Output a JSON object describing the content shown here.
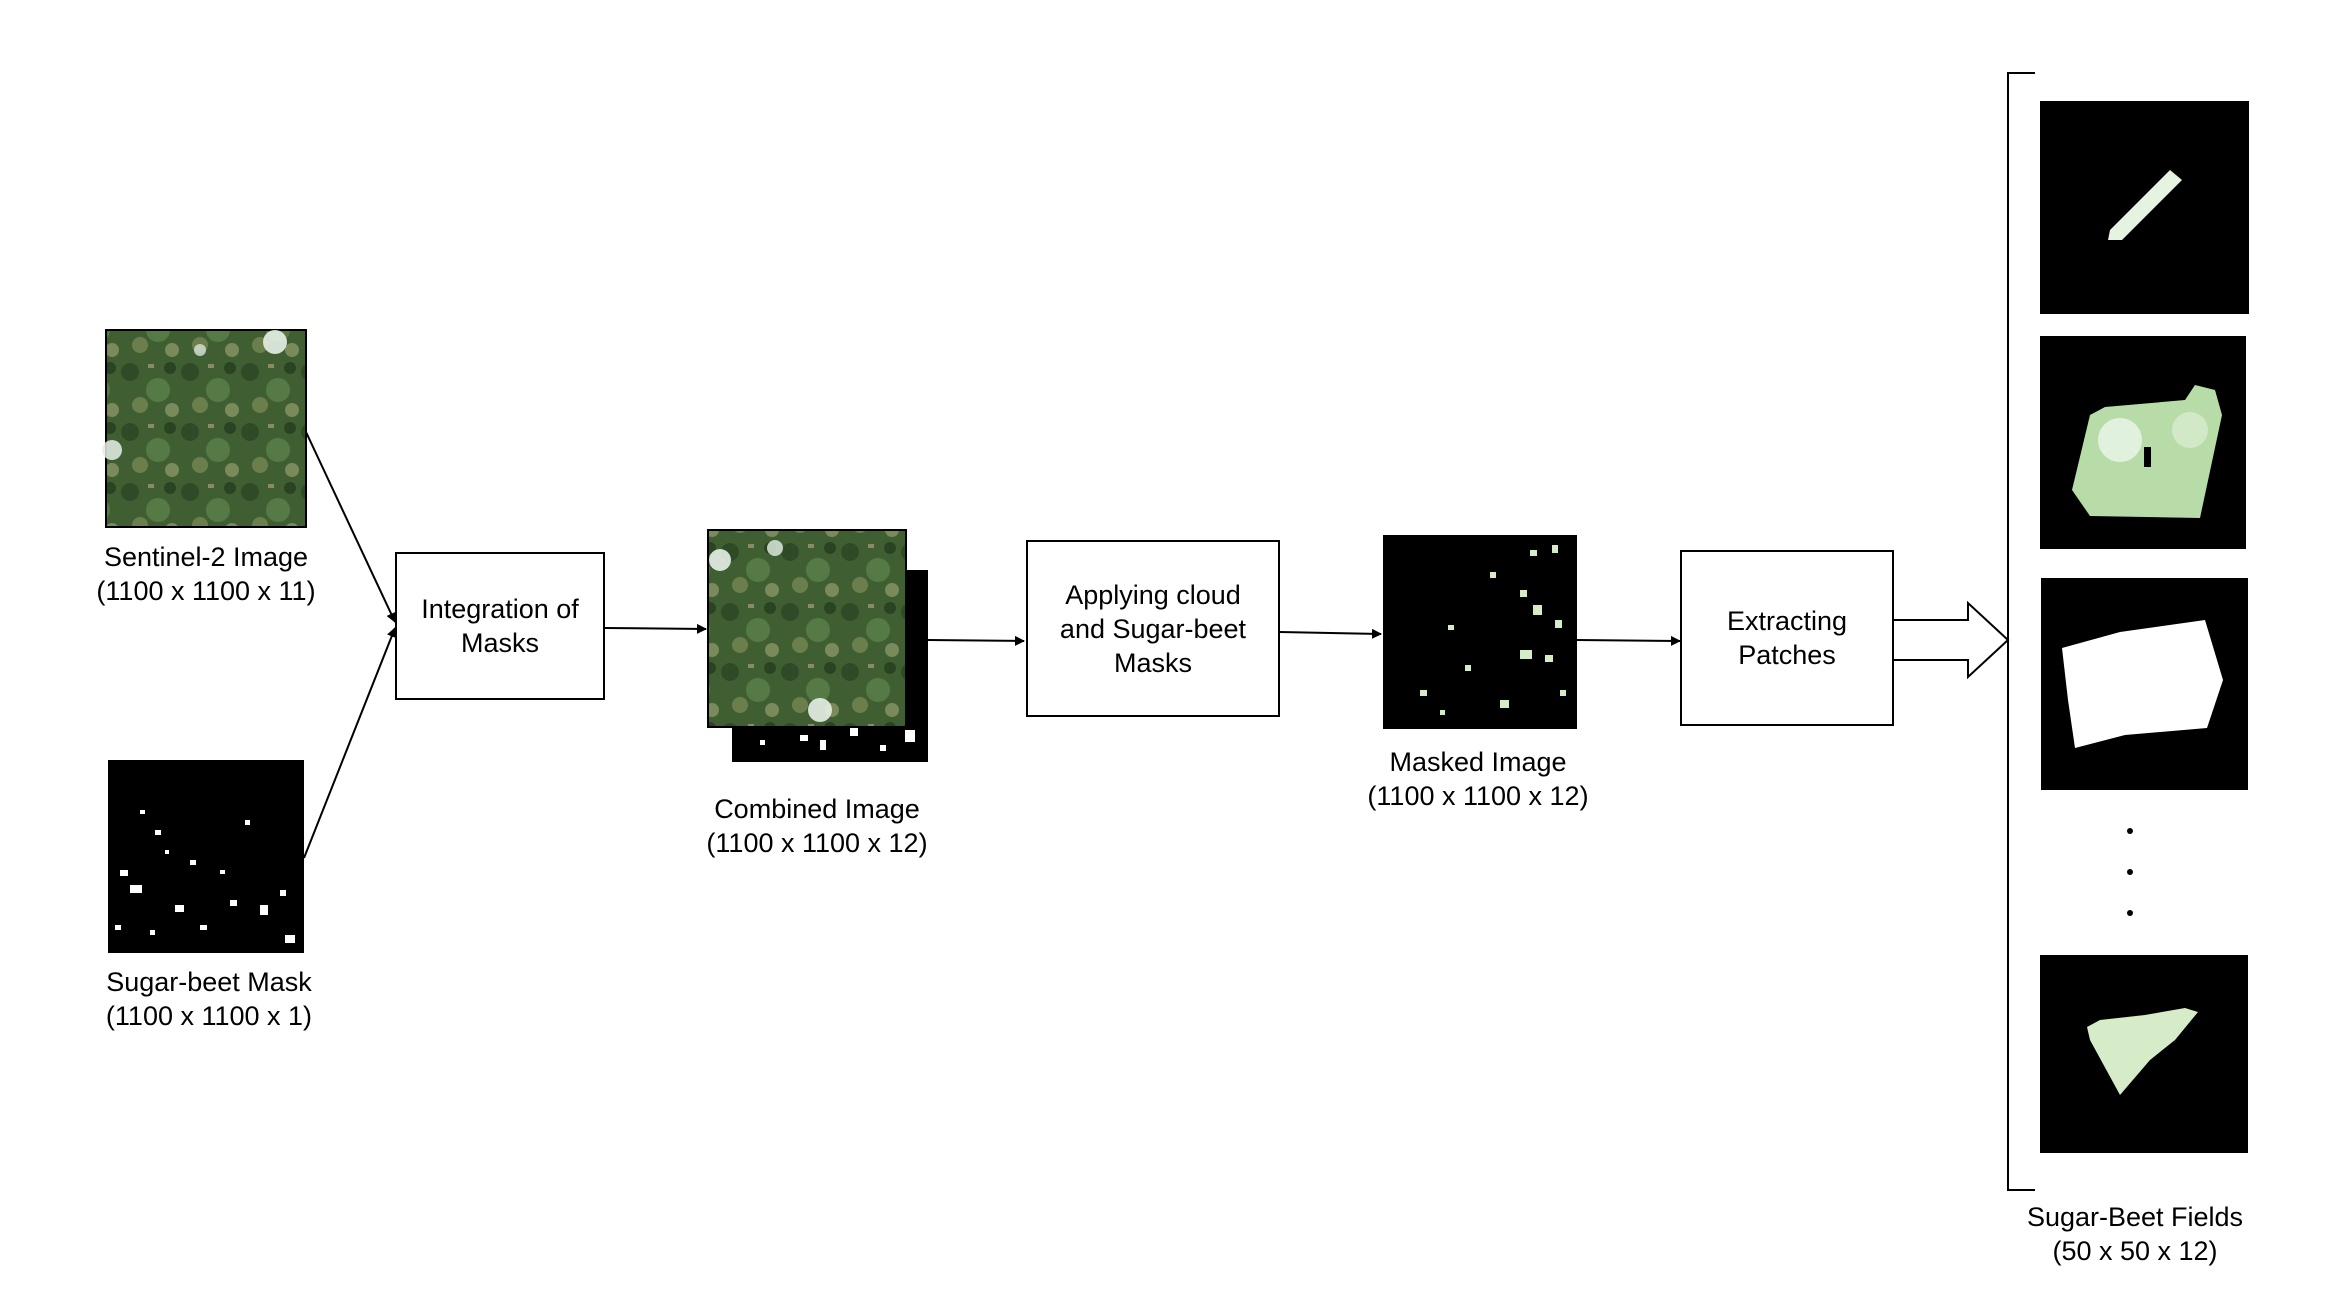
{
  "inputs": {
    "sentinel": {
      "title": "Sentinel-2 Image",
      "dims": "(1100 x 1100 x 11)"
    },
    "mask": {
      "title": "Sugar-beet Mask",
      "dims": "(1100 x 1100 x 1)"
    }
  },
  "steps": {
    "integration": {
      "line1": "Integration of",
      "line2": "Masks"
    },
    "combined": {
      "title": "Combined Image",
      "dims": "(1100 x 1100 x 12)"
    },
    "applying": {
      "line1": "Applying cloud",
      "line2": "and Sugar-beet",
      "line3": "Masks"
    },
    "masked": {
      "title": "Masked Image",
      "dims": "(1100 x 1100 x 12)"
    },
    "extracting": {
      "line1": "Extracting",
      "line2": "Patches"
    }
  },
  "output": {
    "title": "Sugar-Beet Fields",
    "dims": "(50 x 50 x 12)"
  },
  "colors": {
    "forest_dark": "#2f4a26",
    "forest_mid": "#4a6b3a",
    "field_light": "#d6ecc9",
    "mask_black": "#000000"
  }
}
